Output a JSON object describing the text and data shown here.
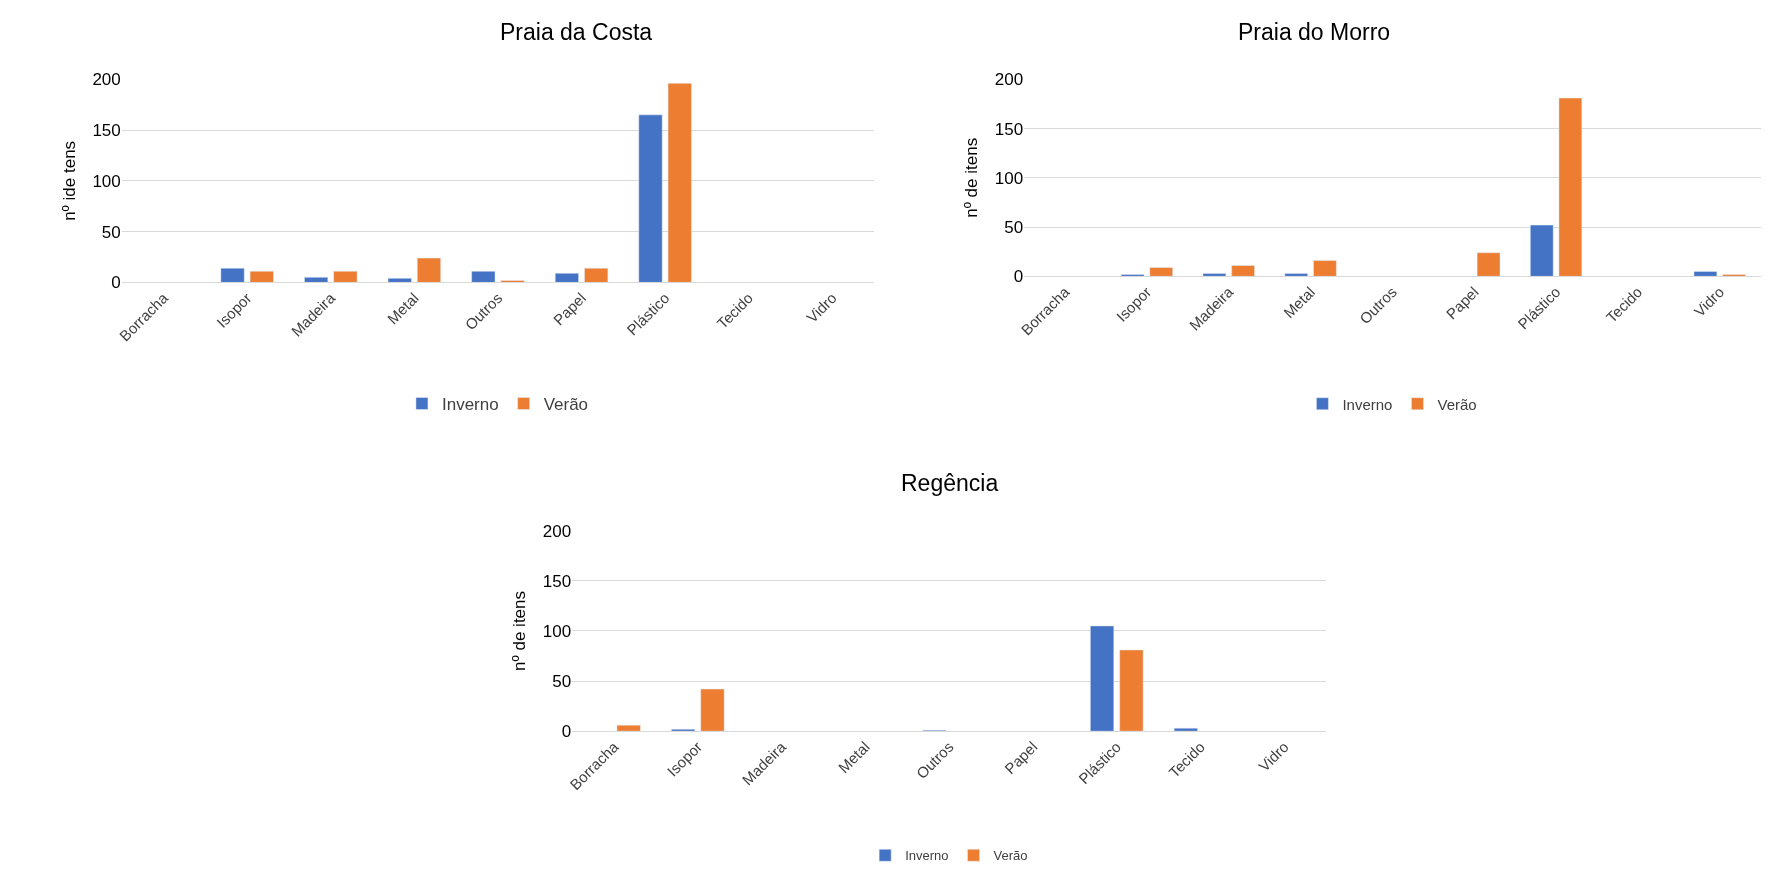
{
  "chart_data": [
    {
      "type": "bar",
      "title": "Praia da Costa",
      "ylabel": "nº ide tens",
      "categories": [
        "Borracha",
        "Isopor",
        "Madeira",
        "Metal",
        "Outros",
        "Papel",
        "Plástico",
        "Tecido",
        "Vidro"
      ],
      "series": [
        {
          "name": "Inverno",
          "color": "#4472c4",
          "values": [
            null,
            14,
            5,
            4,
            11,
            9,
            165,
            null,
            null
          ]
        },
        {
          "name": "Verão",
          "color": "#ed7d31",
          "values": [
            null,
            11,
            11,
            24,
            2,
            14,
            196,
            null,
            null
          ]
        }
      ],
      "ylim": [
        0,
        200
      ],
      "yticks": [
        0,
        50,
        100,
        150,
        200
      ],
      "grid": "y",
      "legend": "bottom"
    },
    {
      "type": "bar",
      "title": "Praia do Morro",
      "ylabel": "nº de itens",
      "categories": [
        "Borracha",
        "Isopor",
        "Madeira",
        "Metal",
        "Outros",
        "Papel",
        "Plástico",
        "Tecido",
        "Vidro"
      ],
      "series": [
        {
          "name": "Inverno",
          "color": "#4472c4",
          "values": [
            null,
            2,
            3,
            3,
            null,
            null,
            52,
            null,
            5
          ]
        },
        {
          "name": "Verão",
          "color": "#ed7d31",
          "values": [
            null,
            9,
            11,
            16,
            null,
            24,
            181,
            null,
            2
          ]
        }
      ],
      "ylim": [
        0,
        200
      ],
      "yticks": [
        0,
        50,
        100,
        150,
        200
      ],
      "grid": "y",
      "legend": "bottom"
    },
    {
      "type": "bar",
      "title": "Regência",
      "ylabel": "nº de itens",
      "categories": [
        "Borracha",
        "Isopor",
        "Madeira",
        "Metal",
        "Outros",
        "Papel",
        "Plástico",
        "Tecido",
        "Vidro"
      ],
      "series": [
        {
          "name": "Inverno",
          "color": "#4472c4",
          "values": [
            null,
            2,
            null,
            null,
            1,
            null,
            105,
            3,
            null
          ]
        },
        {
          "name": "Verão",
          "color": "#ed7d31",
          "values": [
            6,
            42,
            null,
            null,
            null,
            null,
            81,
            null,
            null
          ]
        }
      ],
      "ylim": [
        0,
        200
      ],
      "yticks": [
        0,
        50,
        100,
        150,
        200
      ],
      "grid": "y",
      "legend": "bottom"
    }
  ]
}
